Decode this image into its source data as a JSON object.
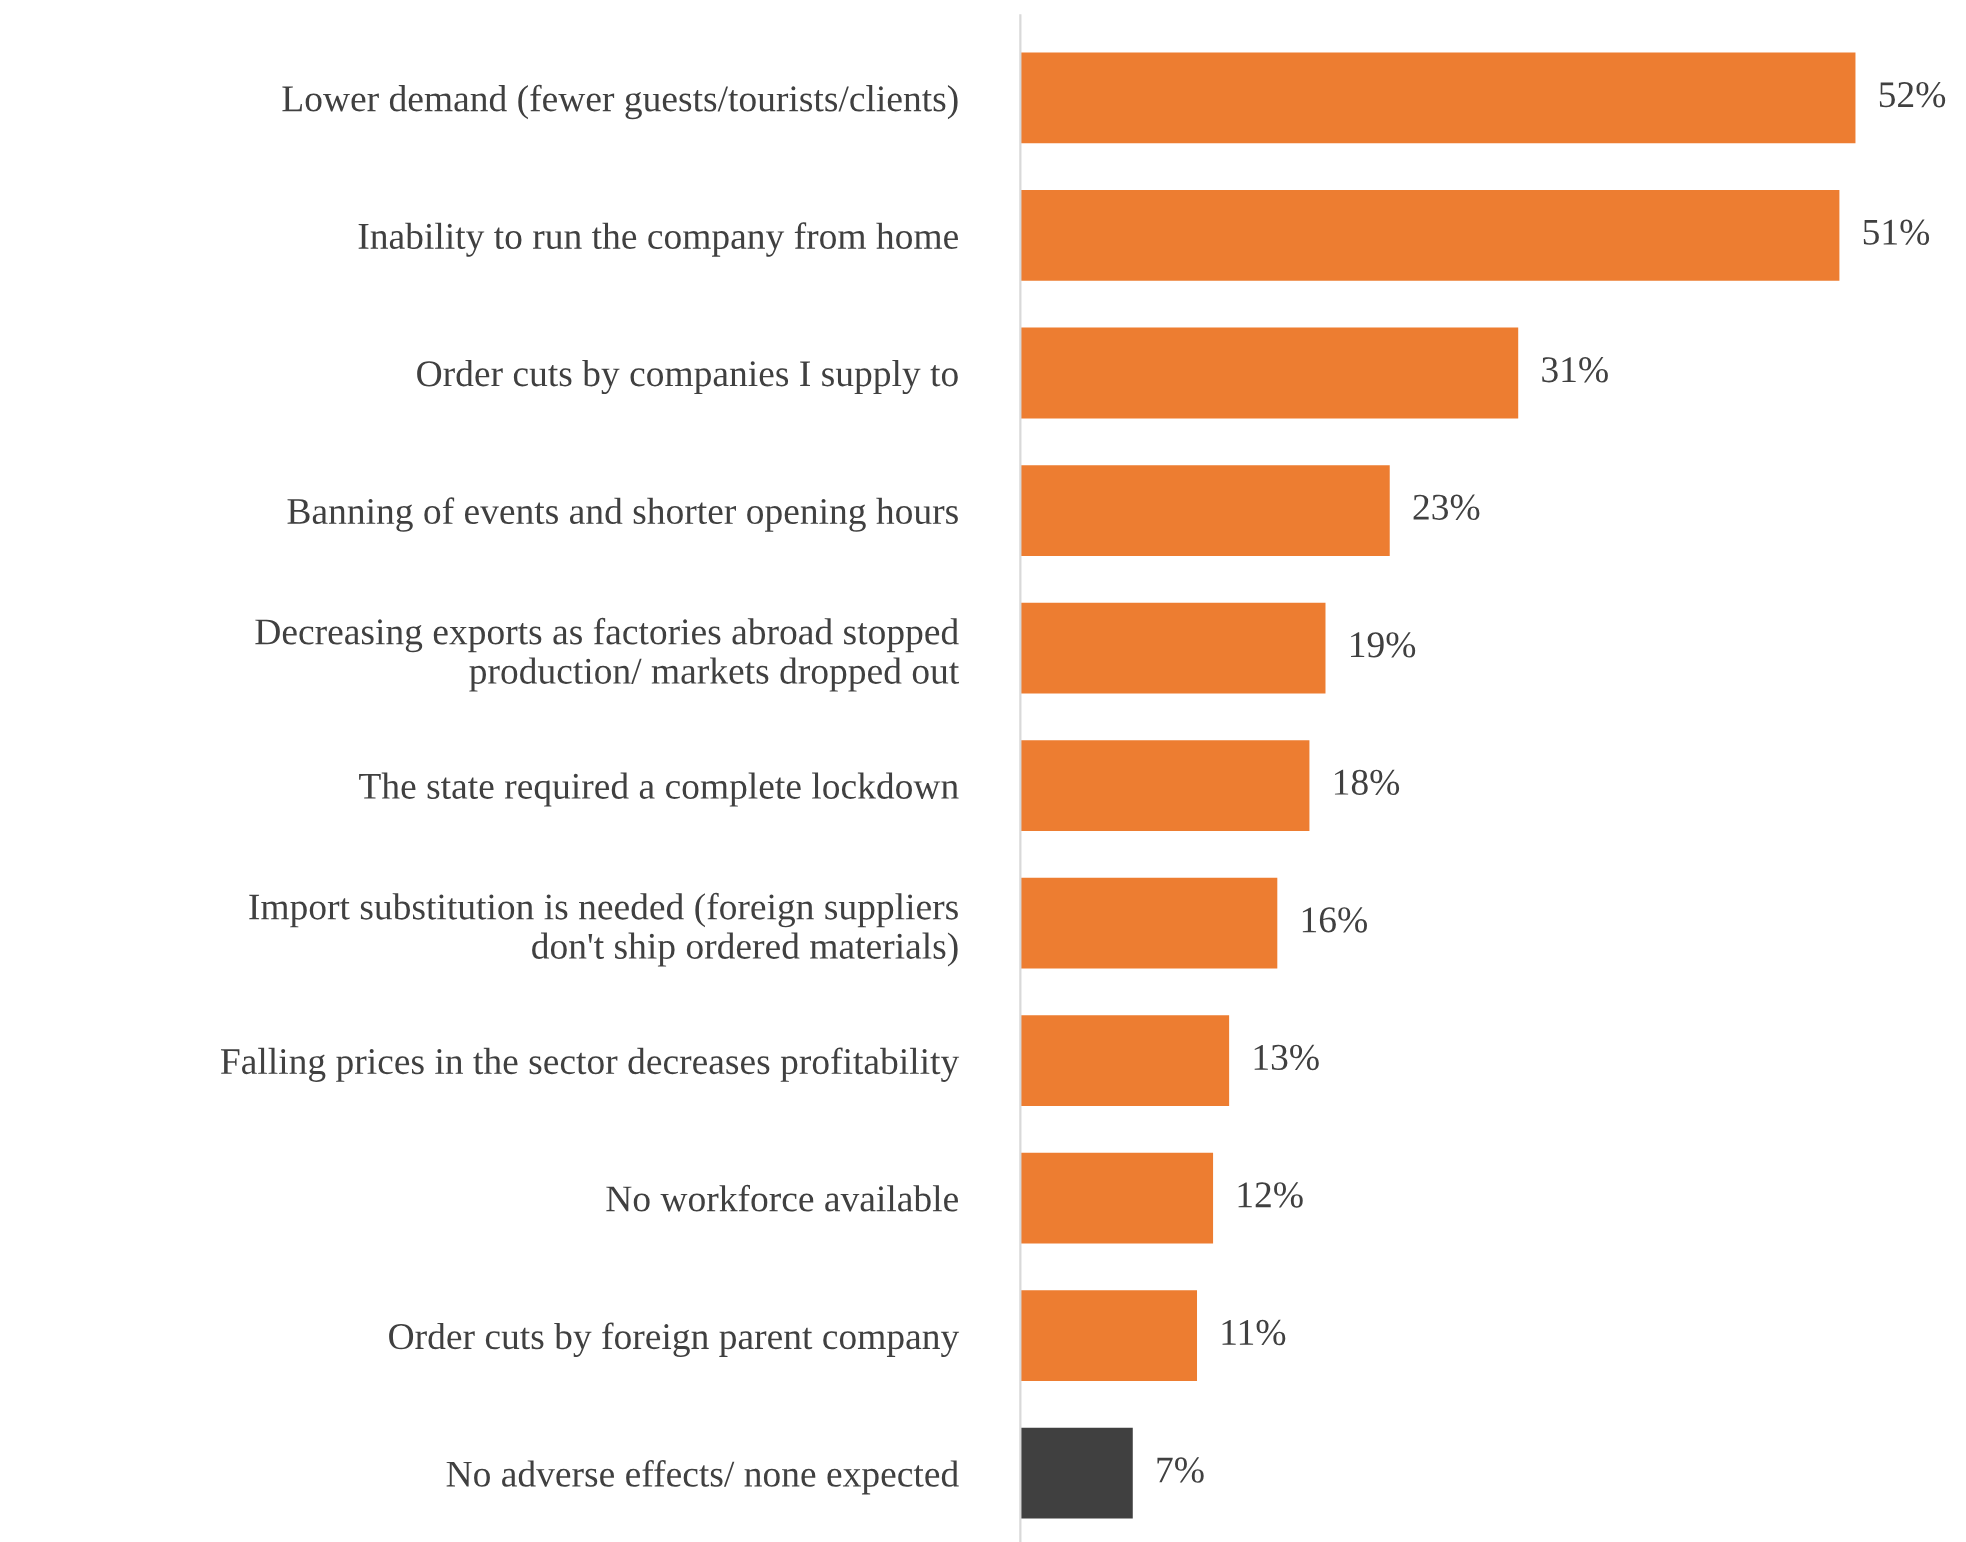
{
  "chart_data": {
    "type": "bar",
    "orientation": "horizontal",
    "categories": [
      "Lower demand (fewer guests/tourists/clients)",
      "Inability to run the company from home",
      "Order cuts by companies I supply to",
      "Banning of events and shorter opening hours",
      "Decreasing exports as factories abroad stopped\nproduction/ markets dropped out",
      "The state required a complete lockdown",
      "Import substitution is needed (foreign suppliers\ndon't ship ordered materials)",
      "Falling prices in the sector decreases profitability",
      "No workforce available",
      "Order cuts by foreign parent company",
      "No adverse effects/ none expected"
    ],
    "values": [
      52,
      51,
      31,
      23,
      19,
      18,
      16,
      13,
      12,
      11,
      7
    ],
    "colors": [
      "#ed7d31",
      "#ed7d31",
      "#ed7d31",
      "#ed7d31",
      "#ed7d31",
      "#ed7d31",
      "#ed7d31",
      "#ed7d31",
      "#ed7d31",
      "#ed7d31",
      "#404040"
    ],
    "value_labels": [
      "52%",
      "51%",
      "31%",
      "23%",
      "19%",
      "18%",
      "16%",
      "13%",
      "12%",
      "11%",
      "7%"
    ],
    "grid": false,
    "legend": false
  }
}
